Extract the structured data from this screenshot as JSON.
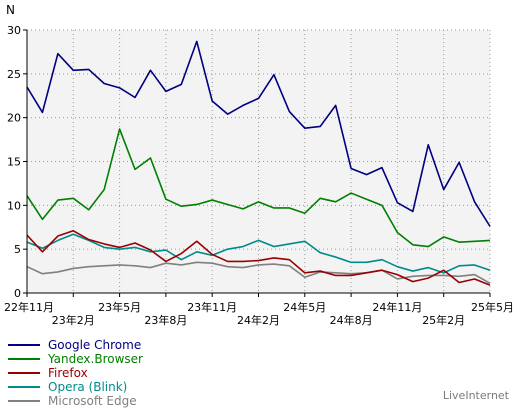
{
  "chart_data": {
    "type": "line",
    "ylabel": "N",
    "ylim": [
      0,
      30
    ],
    "yticks": [
      0,
      5,
      10,
      15,
      20,
      25,
      30
    ],
    "grid": true,
    "legend_position": "bottom-left",
    "x_count": 31,
    "xtick_labels": [
      {
        "index": 0,
        "label": "22年11月",
        "row": 0
      },
      {
        "index": 3,
        "label": "23年2月",
        "row": 1
      },
      {
        "index": 6,
        "label": "23年5月",
        "row": 0
      },
      {
        "index": 9,
        "label": "23年8月",
        "row": 1
      },
      {
        "index": 12,
        "label": "23年11月",
        "row": 0
      },
      {
        "index": 15,
        "label": "24年2月",
        "row": 1
      },
      {
        "index": 18,
        "label": "24年5月",
        "row": 0
      },
      {
        "index": 21,
        "label": "24年8月",
        "row": 1
      },
      {
        "index": 24,
        "label": "24年11月",
        "row": 0
      },
      {
        "index": 27,
        "label": "25年2月",
        "row": 1
      },
      {
        "index": 30,
        "label": "25年5月",
        "row": 0
      }
    ],
    "series": [
      {
        "name": "Google Chrome",
        "color": "#000080",
        "values": [
          23.5,
          20.6,
          27.3,
          25.4,
          25.5,
          23.9,
          23.4,
          22.3,
          25.4,
          23.0,
          23.8,
          28.7,
          21.9,
          20.4,
          21.4,
          22.2,
          24.9,
          20.7,
          18.8,
          19.0,
          21.4,
          14.2,
          13.5,
          14.3,
          10.3,
          9.3,
          16.9,
          11.8,
          14.9,
          10.4,
          7.6
        ]
      },
      {
        "name": "Yandex.Browser",
        "color": "#008000",
        "values": [
          11.1,
          8.4,
          10.6,
          10.8,
          9.5,
          11.8,
          18.7,
          14.1,
          15.4,
          10.7,
          9.9,
          10.1,
          10.6,
          10.1,
          9.6,
          10.4,
          9.7,
          9.7,
          9.1,
          10.8,
          10.4,
          11.4,
          10.7,
          10.0,
          6.9,
          5.5,
          5.3,
          6.4,
          5.8,
          5.9,
          6.0
        ]
      },
      {
        "name": "Firefox",
        "color": "#990000",
        "values": [
          6.6,
          4.7,
          6.5,
          7.1,
          6.1,
          5.6,
          5.2,
          5.7,
          4.9,
          3.6,
          4.5,
          5.9,
          4.4,
          3.6,
          3.6,
          3.7,
          4.0,
          3.8,
          2.3,
          2.5,
          2.0,
          2.0,
          2.3,
          2.6,
          2.1,
          1.3,
          1.7,
          2.6,
          1.2,
          1.6,
          0.9
        ]
      },
      {
        "name": "Opera (Blink)",
        "color": "#008b8b",
        "values": [
          5.8,
          5.1,
          6.0,
          6.7,
          6.0,
          5.2,
          5.0,
          5.2,
          4.7,
          4.9,
          3.8,
          4.7,
          4.3,
          5.0,
          5.3,
          6.0,
          5.3,
          5.6,
          5.9,
          4.6,
          4.1,
          3.5,
          3.5,
          3.8,
          3.0,
          2.5,
          2.9,
          2.3,
          3.1,
          3.2,
          2.6
        ]
      },
      {
        "name": "Microsoft Edge",
        "color": "#808080",
        "values": [
          3.0,
          2.2,
          2.4,
          2.8,
          3.0,
          3.1,
          3.2,
          3.1,
          2.9,
          3.4,
          3.2,
          3.5,
          3.4,
          3.0,
          2.9,
          3.2,
          3.3,
          3.1,
          1.8,
          2.4,
          2.3,
          2.2,
          2.3,
          2.6,
          1.6,
          1.9,
          2.0,
          2.0,
          1.9,
          2.1,
          1.1
        ]
      }
    ]
  },
  "footer": {
    "source_label": "LiveInternet"
  }
}
